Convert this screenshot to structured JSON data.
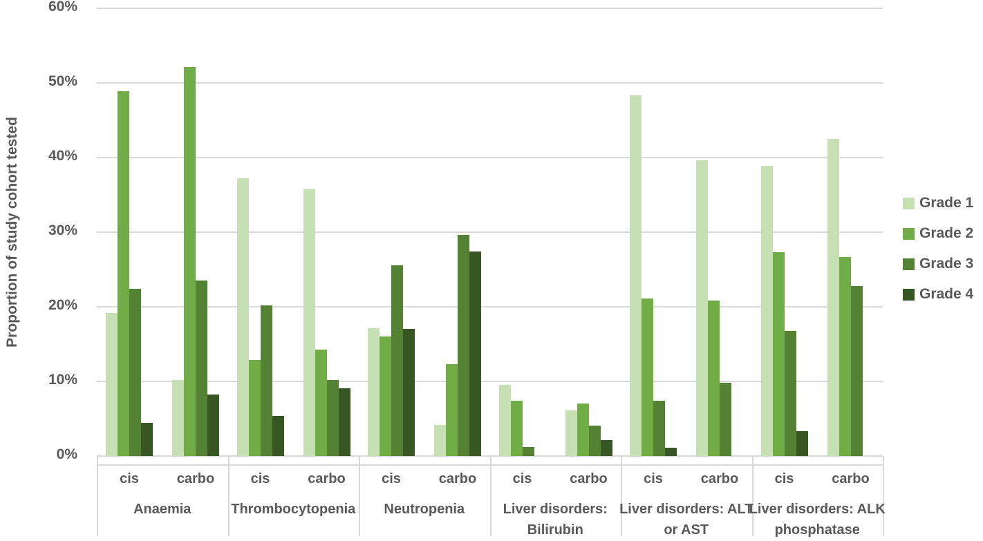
{
  "chart_data": {
    "type": "bar",
    "title": "",
    "xlabel": "",
    "ylabel": "Proportion of study cohort tested",
    "ylim": [
      0,
      60
    ],
    "y_tick_labels": [
      "0%",
      "10%",
      "20%",
      "30%",
      "40%",
      "50%",
      "60%"
    ],
    "grid": true,
    "legend_position": "right",
    "series": [
      {
        "name": "Grade 1",
        "color": "#c6e0b4"
      },
      {
        "name": "Grade 2",
        "color": "#70ad47"
      },
      {
        "name": "Grade 3",
        "color": "#548235"
      },
      {
        "name": "Grade 4",
        "color": "#375623"
      }
    ],
    "groups": [
      {
        "category": "Anaemia",
        "label_lines": [
          "Anaemia"
        ],
        "subgroups": [
          {
            "label": "cis",
            "values": [
              19.2,
              48.9,
              22.4,
              4.4
            ]
          },
          {
            "label": "carbo",
            "values": [
              10.2,
              52.1,
              23.5,
              8.2
            ]
          }
        ]
      },
      {
        "category": "Thrombocytopenia",
        "label_lines": [
          "Thrombocytopenia"
        ],
        "subgroups": [
          {
            "label": "cis",
            "values": [
              37.2,
              12.9,
              20.2,
              5.4
            ]
          },
          {
            "label": "carbo",
            "values": [
              35.7,
              14.3,
              10.2,
              9.1
            ]
          }
        ]
      },
      {
        "category": "Neutropenia",
        "label_lines": [
          "Neutropenia"
        ],
        "subgroups": [
          {
            "label": "cis",
            "values": [
              17.1,
              16.0,
              25.6,
              17.0
            ]
          },
          {
            "label": "carbo",
            "values": [
              4.2,
              12.3,
              29.6,
              27.4
            ]
          }
        ]
      },
      {
        "category": "Liver disorders: Bilirubin",
        "label_lines": [
          "Liver disorders:",
          "Bilirubin"
        ],
        "subgroups": [
          {
            "label": "cis",
            "values": [
              9.5,
              7.4,
              1.2,
              0
            ]
          },
          {
            "label": "carbo",
            "values": [
              6.1,
              7.0,
              4.1,
              2.1
            ]
          }
        ]
      },
      {
        "category": "Liver disorders: ALT or AST",
        "label_lines": [
          "Liver disorders: ALT",
          "or AST"
        ],
        "subgroups": [
          {
            "label": "cis",
            "values": [
              48.3,
              21.1,
              7.4,
              1.1
            ]
          },
          {
            "label": "carbo",
            "values": [
              39.6,
              20.8,
              9.8,
              0
            ]
          }
        ]
      },
      {
        "category": "Liver disorders: ALK phosphatase",
        "label_lines": [
          "Liver disorders: ALK",
          "phosphatase"
        ],
        "subgroups": [
          {
            "label": "cis",
            "values": [
              38.9,
              27.3,
              16.8,
              3.3
            ]
          },
          {
            "label": "carbo",
            "values": [
              42.5,
              26.7,
              22.8,
              0
            ]
          }
        ]
      }
    ],
    "colors": {
      "text": "#595959",
      "gridline": "#d9d9d9",
      "axis_box_border": "#d9d9d9"
    }
  }
}
